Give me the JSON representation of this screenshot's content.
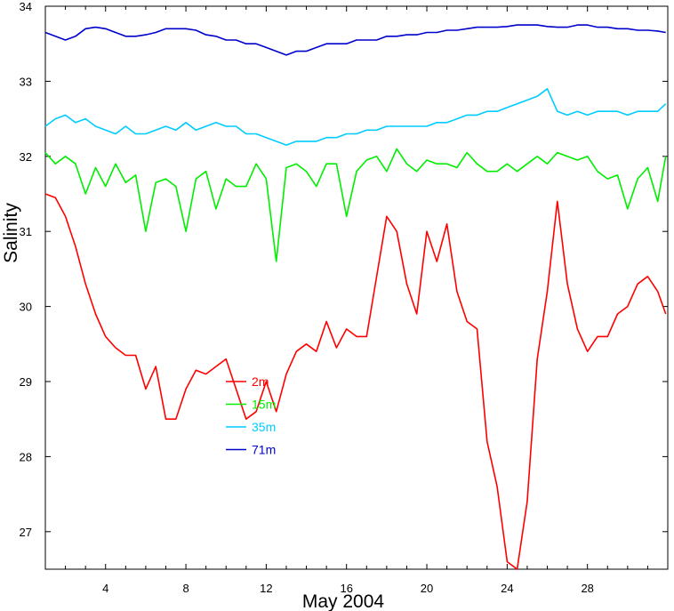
{
  "chart_data": {
    "type": "line",
    "title": "",
    "xlabel": "May 2004",
    "ylabel": "Salinity",
    "xlim": [
      1,
      32
    ],
    "ylim": [
      26.5,
      34
    ],
    "x_ticks": [
      4,
      8,
      12,
      16,
      20,
      24,
      28
    ],
    "y_ticks": [
      27,
      28,
      29,
      30,
      31,
      32,
      33,
      34
    ],
    "grid": false,
    "legend_position": "center-left",
    "x": [
      1,
      1.5,
      2,
      2.5,
      3,
      3.5,
      4,
      4.5,
      5,
      5.5,
      6,
      6.5,
      7,
      7.5,
      8,
      8.5,
      9,
      9.5,
      10,
      10.5,
      11,
      11.5,
      12,
      12.5,
      13,
      13.5,
      14,
      14.5,
      15,
      15.5,
      16,
      16.5,
      17,
      17.5,
      18,
      18.5,
      19,
      19.5,
      20,
      20.5,
      21,
      21.5,
      22,
      22.5,
      23,
      23.5,
      24,
      24.5,
      25,
      25.5,
      26,
      26.5,
      27,
      27.5,
      28,
      28.5,
      29,
      29.5,
      30,
      30.5,
      31,
      31.5,
      31.9
    ],
    "series": [
      {
        "name": "2m",
        "color": "#ff0000",
        "values": [
          31.5,
          31.45,
          31.2,
          30.8,
          30.3,
          29.9,
          29.6,
          29.45,
          29.35,
          29.35,
          28.9,
          29.2,
          28.5,
          28.5,
          28.9,
          29.15,
          29.1,
          29.2,
          29.3,
          28.9,
          28.5,
          28.6,
          29.0,
          28.6,
          29.1,
          29.4,
          29.5,
          29.4,
          29.8,
          29.45,
          29.7,
          29.6,
          29.6,
          30.4,
          31.2,
          31.0,
          30.3,
          29.9,
          31.0,
          30.6,
          31.1,
          30.2,
          29.8,
          29.7,
          28.2,
          27.6,
          26.6,
          26.5,
          27.4,
          29.3,
          30.2,
          31.4,
          30.3,
          29.7,
          29.4,
          29.6,
          29.6,
          29.9,
          30.0,
          30.3,
          30.4,
          30.2,
          29.9
        ]
      },
      {
        "name": "15m",
        "color": "#00ee00",
        "values": [
          32.05,
          31.9,
          32.0,
          31.9,
          31.5,
          31.85,
          31.6,
          31.9,
          31.65,
          31.75,
          31.0,
          31.65,
          31.7,
          31.6,
          31.0,
          31.7,
          31.8,
          31.3,
          31.7,
          31.6,
          31.6,
          31.9,
          31.7,
          30.6,
          31.85,
          31.9,
          31.8,
          31.6,
          31.9,
          31.9,
          31.2,
          31.8,
          31.95,
          32.0,
          31.8,
          32.1,
          31.9,
          31.8,
          31.95,
          31.9,
          31.9,
          31.85,
          32.05,
          31.9,
          31.8,
          31.8,
          31.9,
          31.8,
          31.9,
          32.0,
          31.9,
          32.05,
          32.0,
          31.95,
          32.0,
          31.8,
          31.7,
          31.75,
          31.3,
          31.7,
          31.85,
          31.4,
          32.0
        ]
      },
      {
        "name": "35m",
        "color": "#00ccff",
        "values": [
          32.4,
          32.5,
          32.55,
          32.45,
          32.5,
          32.4,
          32.35,
          32.3,
          32.4,
          32.3,
          32.3,
          32.35,
          32.4,
          32.35,
          32.45,
          32.35,
          32.4,
          32.45,
          32.4,
          32.4,
          32.3,
          32.3,
          32.25,
          32.2,
          32.15,
          32.2,
          32.2,
          32.2,
          32.25,
          32.25,
          32.3,
          32.3,
          32.35,
          32.35,
          32.4,
          32.4,
          32.4,
          32.4,
          32.4,
          32.45,
          32.45,
          32.5,
          32.55,
          32.55,
          32.6,
          32.6,
          32.65,
          32.7,
          32.75,
          32.8,
          32.9,
          32.6,
          32.55,
          32.6,
          32.55,
          32.6,
          32.6,
          32.6,
          32.55,
          32.6,
          32.6,
          32.6,
          32.7
        ]
      },
      {
        "name": "71m",
        "color": "#0000cc",
        "values": [
          33.65,
          33.6,
          33.55,
          33.6,
          33.7,
          33.72,
          33.7,
          33.65,
          33.6,
          33.6,
          33.62,
          33.65,
          33.7,
          33.7,
          33.7,
          33.68,
          33.62,
          33.6,
          33.55,
          33.55,
          33.5,
          33.5,
          33.45,
          33.4,
          33.35,
          33.4,
          33.4,
          33.45,
          33.5,
          33.5,
          33.5,
          33.55,
          33.55,
          33.55,
          33.6,
          33.6,
          33.62,
          33.62,
          33.65,
          33.65,
          33.68,
          33.68,
          33.7,
          33.72,
          33.72,
          33.72,
          33.73,
          33.75,
          33.75,
          33.75,
          33.73,
          33.72,
          33.72,
          33.75,
          33.75,
          33.72,
          33.72,
          33.7,
          33.7,
          33.68,
          33.68,
          33.67,
          33.65
        ]
      }
    ]
  }
}
